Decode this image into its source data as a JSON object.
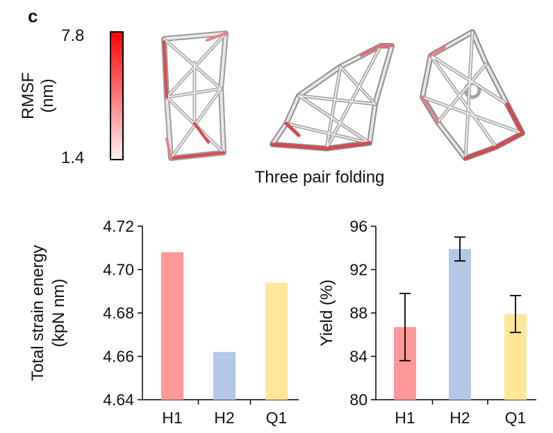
{
  "panel_label": "c",
  "colorbar": {
    "title_line1": "RMSF",
    "title_line2": "(nm)",
    "max_label": "7.8",
    "min_label": "1.4",
    "color_high": "#ff0000",
    "color_low": "#fdf0f2"
  },
  "structures_caption": "Three pair folding",
  "colors": {
    "H1": "#ff9999",
    "H2": "#b4c7e7",
    "Q1": "#ffe699"
  },
  "chart_data": [
    {
      "type": "bar",
      "categories": [
        "H1",
        "H2",
        "Q1"
      ],
      "values": [
        4.708,
        4.662,
        4.694
      ],
      "ylabel_line1": "Total strain energy",
      "ylabel_line2": "(kpN nm)",
      "yticks": [
        "4.64",
        "4.66",
        "4.68",
        "4.70",
        "4.72"
      ],
      "ylim": [
        4.64,
        4.72
      ],
      "grid": false
    },
    {
      "type": "bar",
      "categories": [
        "H1",
        "H2",
        "Q1"
      ],
      "values": [
        86.7,
        93.9,
        87.9
      ],
      "errors": [
        3.1,
        1.1,
        1.7
      ],
      "ylabel_line1": "Yield (%)",
      "yticks": [
        "80",
        "84",
        "88",
        "92",
        "96"
      ],
      "ylim": [
        80,
        96
      ],
      "grid": false
    }
  ]
}
